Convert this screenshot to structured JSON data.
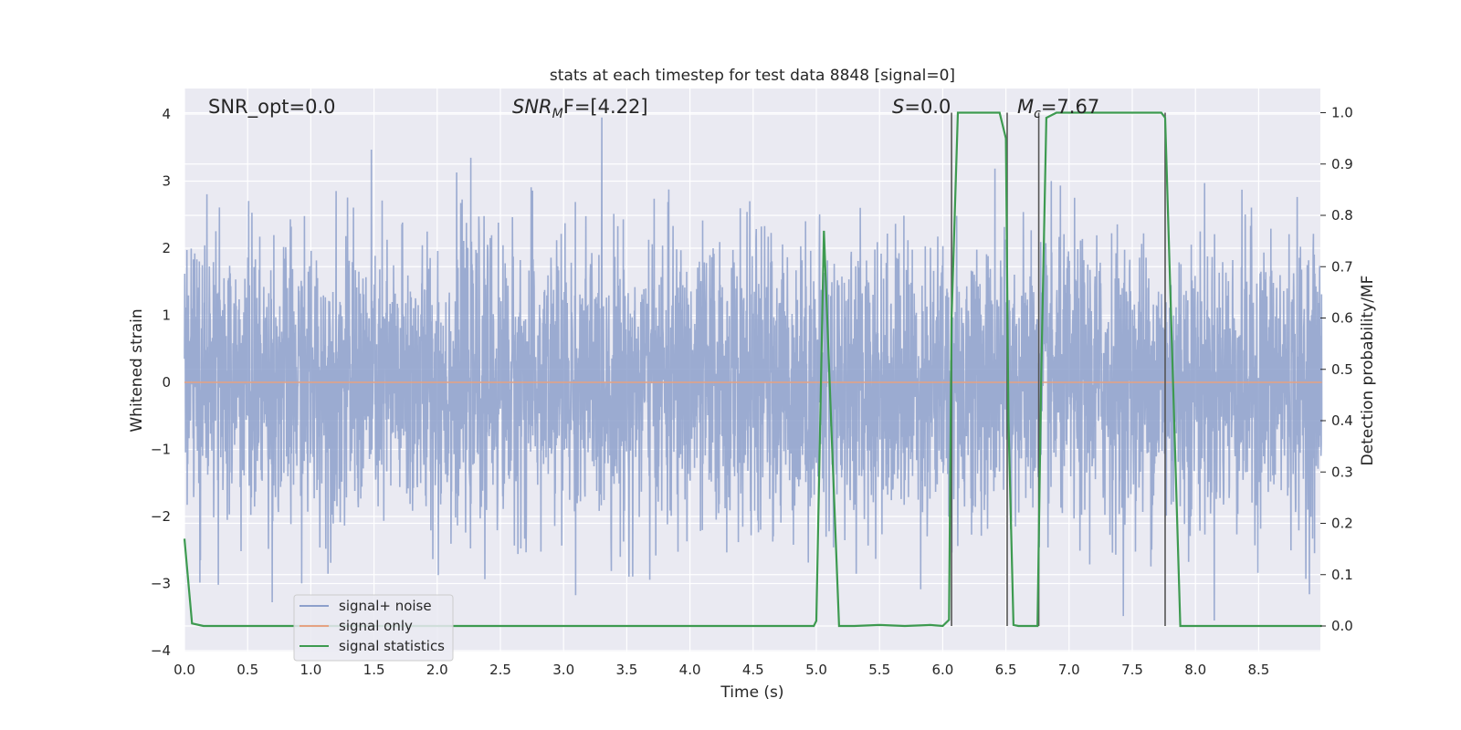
{
  "chart_data": {
    "type": "line",
    "title": "stats at each timestep for test data 8848 [signal=0]",
    "xlabel": "Time (s)",
    "ylabel": "Whitened strain",
    "ylabel_right": "Detection probability/MF",
    "xlim": [
      0.0,
      9.0
    ],
    "ylim": [
      -4,
      4.35
    ],
    "ylim_right": [
      -0.05,
      1.045
    ],
    "x_ticks": [
      "0.0",
      "0.5",
      "1.0",
      "1.5",
      "2.0",
      "2.5",
      "3.0",
      "3.5",
      "4.0",
      "4.5",
      "5.0",
      "5.5",
      "6.0",
      "6.5",
      "7.0",
      "7.5",
      "8.0",
      "8.5"
    ],
    "y_ticks": [
      "4",
      "3",
      "2",
      "1",
      "0",
      "−1",
      "−2",
      "−3",
      "−4"
    ],
    "y_ticks_right": [
      "1.0",
      "0.9",
      "0.8",
      "0.7",
      "0.6",
      "0.5",
      "0.4",
      "0.3",
      "0.2",
      "0.1",
      "0.0"
    ],
    "grid": true,
    "legend_position": "lower-left",
    "annotations": {
      "snr_opt": "SNR_opt=0.0",
      "snr_mf_base": "SNR",
      "snr_mf_sub": "M",
      "snr_mf_tail": "F=[4.22]",
      "s_var": "S",
      "s_tail": "=0.0",
      "mc_base": "M",
      "mc_sub": "c",
      "mc_tail": "=7.67"
    },
    "series": [
      {
        "name": "signal+ noise",
        "axis": "left",
        "color": "#8da0cb",
        "note_values": "whitened noise, approx. zero-mean unit-variance, range about -3.5 to 4"
      },
      {
        "name": "signal only",
        "axis": "left",
        "color": "#e5a282",
        "x": [
          0.0,
          9.0
        ],
        "y": [
          0.0,
          0.0
        ]
      },
      {
        "name": "signal statistics",
        "axis": "right",
        "color": "#3d9a50",
        "x": [
          0.0,
          0.06,
          0.15,
          0.3,
          1.0,
          2.0,
          3.0,
          4.0,
          4.98,
          5.0,
          5.06,
          5.12,
          5.18,
          5.3,
          5.5,
          5.7,
          5.9,
          6.0,
          6.05,
          6.07,
          6.12,
          6.2,
          6.3,
          6.45,
          6.5,
          6.52,
          6.56,
          6.6,
          6.7,
          6.75,
          6.78,
          6.82,
          6.9,
          7.0,
          7.3,
          7.5,
          7.73,
          7.76,
          7.88,
          8.0,
          8.5,
          9.0
        ],
        "y": [
          0.17,
          0.005,
          0.0,
          0.0,
          0.0,
          0.0,
          0.0,
          0.0,
          0.0,
          0.01,
          0.77,
          0.38,
          0.0,
          0.0,
          0.002,
          0.0,
          0.002,
          0.0,
          0.012,
          0.6,
          1.0,
          1.0,
          1.0,
          1.0,
          0.95,
          0.4,
          0.002,
          0.0,
          0.0,
          0.0,
          0.5,
          0.99,
          1.0,
          1.0,
          1.0,
          1.0,
          1.0,
          0.99,
          0.0,
          0.0,
          0.0,
          0.0
        ]
      }
    ],
    "vlines_right_axis": [
      {
        "x": 6.07,
        "ymin": 0.0,
        "ymax": 1.0
      },
      {
        "x": 6.51,
        "ymin": 0.0,
        "ymax": 1.0
      },
      {
        "x": 6.76,
        "ymin": 0.0,
        "ymax": 1.0
      },
      {
        "x": 7.76,
        "ymin": 0.0,
        "ymax": 1.0
      }
    ],
    "colors": {
      "plot_background": "#eaeaf2",
      "grid": "#ffffff",
      "vline": "#555555"
    }
  }
}
